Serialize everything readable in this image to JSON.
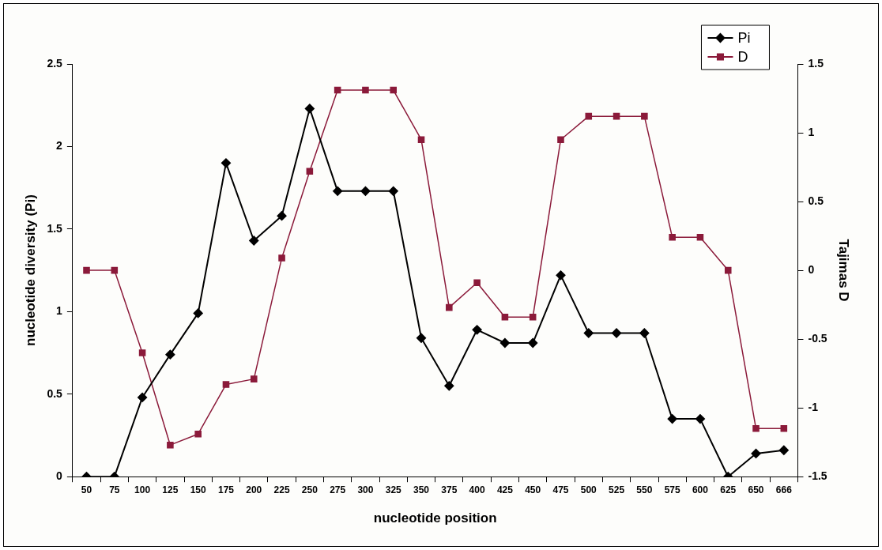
{
  "chart_data": {
    "type": "line",
    "xlabel": "nucleotide position",
    "ylabel": "nucleotide diversity (Pi)",
    "y2label": "Tajimas D",
    "categories": [
      "50",
      "75",
      "100",
      "125",
      "150",
      "175",
      "200",
      "225",
      "250",
      "275",
      "300",
      "325",
      "350",
      "375",
      "400",
      "425",
      "450",
      "475",
      "500",
      "525",
      "550",
      "575",
      "600",
      "625",
      "650",
      "666"
    ],
    "series": [
      {
        "name": "Pi",
        "color": "#000000",
        "marker": "diamond",
        "values": [
          0,
          0,
          0.48,
          0.74,
          0.99,
          1.9,
          1.43,
          1.58,
          2.23,
          1.73,
          1.73,
          1.73,
          0.84,
          0.55,
          0.89,
          0.81,
          0.81,
          1.22,
          0.87,
          0.87,
          0.87,
          0.35,
          0.35,
          0,
          0.14,
          0.16
        ]
      },
      {
        "name": "D",
        "color": "#8b1a3a",
        "marker": "square",
        "axis": "y2",
        "values": [
          0,
          0,
          -0.6,
          -1.27,
          -1.19,
          -0.83,
          -0.79,
          0.09,
          0.72,
          1.31,
          1.31,
          1.31,
          0.95,
          -0.27,
          -0.09,
          -0.34,
          -0.34,
          0.95,
          1.12,
          1.12,
          1.12,
          0.24,
          0.24,
          0,
          -1.15,
          -1.15
        ]
      }
    ],
    "ylim": [
      0,
      2.5
    ],
    "yticks": [
      0,
      0.5,
      1,
      1.5,
      2,
      2.5
    ],
    "y2lim": [
      -1.5,
      1.5
    ],
    "y2ticks": [
      -1.5,
      -1,
      -0.5,
      0,
      0.5,
      1,
      1.5
    ],
    "grid": false,
    "legend": "top right",
    "line_style": "solid"
  }
}
